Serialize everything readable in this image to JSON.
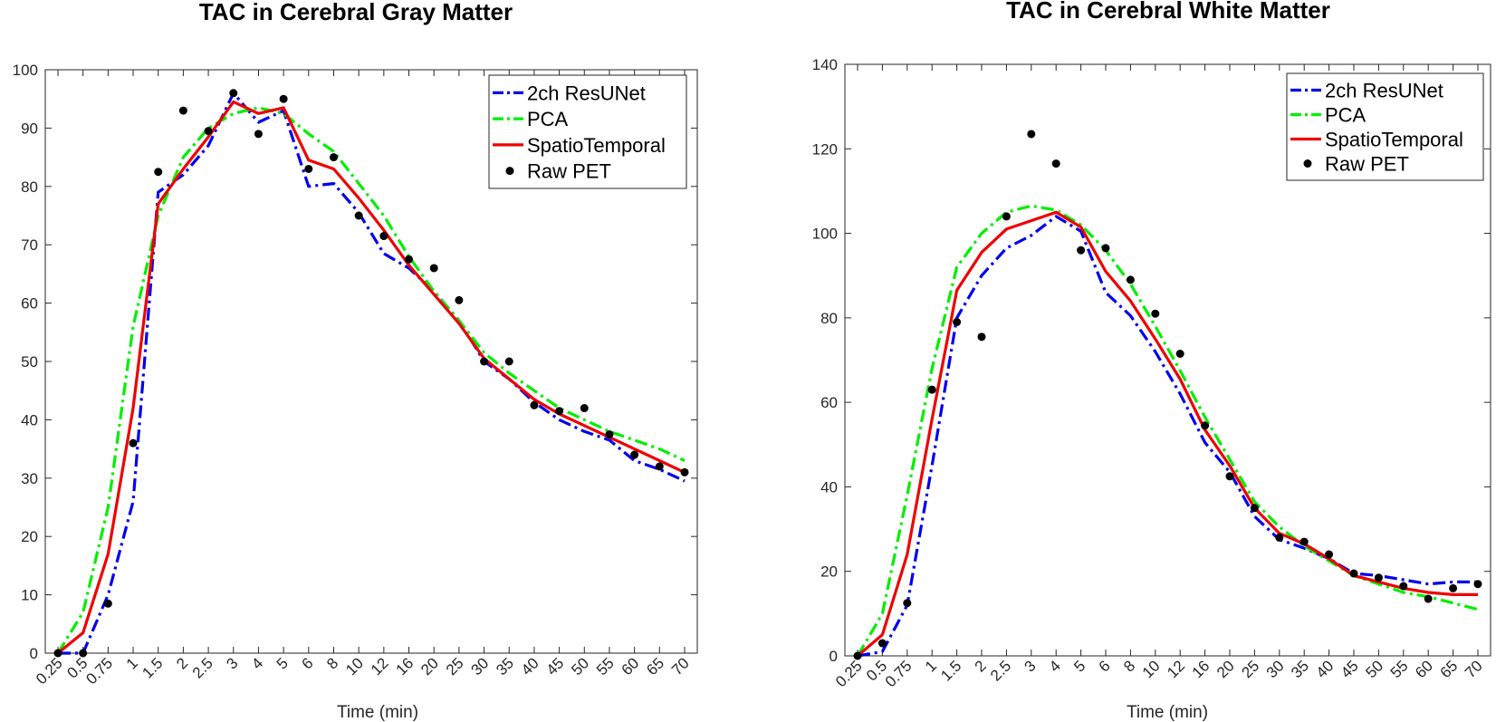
{
  "chart_data": [
    {
      "type": "line",
      "title": "TAC in Cerebral Gray Matter",
      "xlabel": "Time (min)",
      "ylabel": "",
      "ylim": [
        0,
        100
      ],
      "yticks": [
        "0",
        "10",
        "20",
        "30",
        "40",
        "50",
        "60",
        "70",
        "80",
        "90",
        "100"
      ],
      "categories": [
        "0.25",
        "0.5",
        "0.75",
        "1",
        "1.5",
        "2",
        "2.5",
        "3",
        "4",
        "5",
        "6",
        "8",
        "10",
        "12",
        "16",
        "20",
        "25",
        "30",
        "35",
        "40",
        "45",
        "50",
        "55",
        "60",
        "65",
        "70"
      ],
      "legend_position": "top-right",
      "series": [
        {
          "name": "2ch ResUNet",
          "color": "#0000ee",
          "style": "dashdot",
          "values": [
            0,
            0,
            10,
            26,
            79,
            82,
            87,
            96,
            91,
            93,
            80,
            80.5,
            75.5,
            68.5,
            66,
            62,
            57,
            50,
            47,
            43,
            40,
            38,
            36.5,
            33,
            31.5,
            29.5
          ]
        },
        {
          "name": "PCA",
          "color": "#00ee00",
          "style": "dashdot",
          "values": [
            0,
            7,
            25,
            56,
            75,
            85,
            90,
            92.5,
            93.5,
            92.5,
            89,
            86,
            80.5,
            75,
            68,
            62,
            57,
            51.5,
            48,
            45,
            42,
            40,
            38,
            36.5,
            35,
            33
          ]
        },
        {
          "name": "SpatioTemporal",
          "color": "#ee0000",
          "style": "solid",
          "values": [
            0,
            3.5,
            17,
            42,
            77,
            83,
            88.5,
            94.5,
            92.5,
            93.5,
            84.5,
            83,
            78,
            72.5,
            66.5,
            61.5,
            56.5,
            50.5,
            47,
            43.5,
            41,
            39,
            37,
            35,
            33,
            31
          ]
        },
        {
          "name": "Raw PET",
          "color": "#000000",
          "style": "marker",
          "values": [
            0,
            0,
            8.5,
            36,
            82.5,
            93,
            89.5,
            96,
            89,
            95,
            83,
            85,
            75,
            71.5,
            67.5,
            66,
            60.5,
            50,
            50,
            42.5,
            41.5,
            42,
            37.5,
            34,
            32,
            31
          ]
        }
      ]
    },
    {
      "type": "line",
      "title": "TAC in Cerebral White Matter",
      "xlabel": "Time (min)",
      "ylabel": "",
      "ylim": [
        0,
        140
      ],
      "yticks": [
        "0",
        "20",
        "40",
        "60",
        "80",
        "100",
        "120",
        "140"
      ],
      "categories": [
        "0.25",
        "0.5",
        "0.75",
        "1",
        "1.5",
        "2",
        "2.5",
        "3",
        "4",
        "5",
        "6",
        "8",
        "10",
        "12",
        "16",
        "20",
        "25",
        "30",
        "35",
        "40",
        "45",
        "50",
        "55",
        "60",
        "65",
        "70"
      ],
      "legend_position": "top-right",
      "series": [
        {
          "name": "2ch ResUNet",
          "color": "#0000ee",
          "style": "dashdot",
          "values": [
            0,
            1,
            12,
            45,
            80,
            90,
            96.5,
            99.5,
            104,
            100.5,
            86,
            80.5,
            72,
            62,
            50.5,
            43.5,
            33,
            27.5,
            25.5,
            23,
            19.5,
            19,
            18,
            17,
            17.5,
            17.5
          ]
        },
        {
          "name": "PCA",
          "color": "#00ee00",
          "style": "dashdot",
          "values": [
            0,
            10,
            38,
            68,
            92,
            100,
            105,
            106.5,
            105.5,
            102,
            96,
            88,
            78,
            67.5,
            56.5,
            46.5,
            36.5,
            30.5,
            26,
            22.5,
            19,
            17,
            15,
            14,
            12.5,
            11
          ]
        },
        {
          "name": "SpatioTemporal",
          "color": "#ee0000",
          "style": "solid",
          "values": [
            0,
            5,
            24,
            56,
            86.5,
            95.5,
            101,
            103,
            105,
            101.5,
            91,
            84,
            75,
            65.5,
            53.5,
            45,
            35,
            29,
            26.5,
            23,
            19,
            17.5,
            16,
            15,
            14.5,
            14.5
          ]
        },
        {
          "name": "Raw PET",
          "color": "#000000",
          "style": "marker",
          "values": [
            0,
            3,
            12.5,
            63,
            79,
            75.5,
            104,
            123.5,
            116.5,
            96,
            96.5,
            89,
            81,
            71.5,
            54.5,
            42.5,
            35,
            28,
            27,
            24,
            19.5,
            18.5,
            16.5,
            13.5,
            16,
            17
          ]
        }
      ]
    }
  ]
}
